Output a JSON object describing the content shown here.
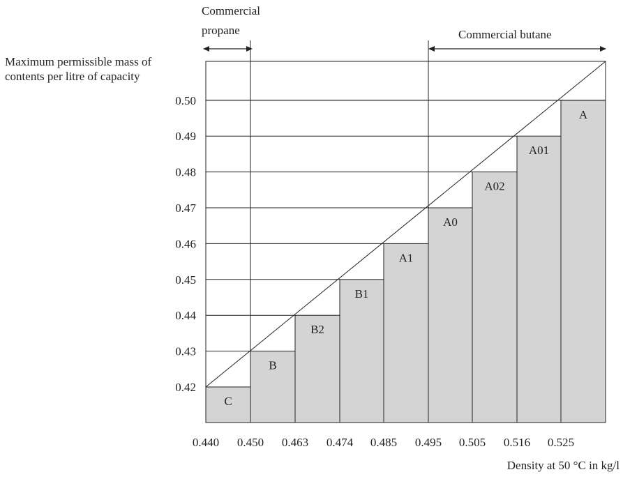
{
  "chart_data": {
    "type": "bar",
    "ylabel_line1": "Maximum permissible mass of",
    "ylabel_line2": "contents per litre of capacity",
    "xlabel": "Density at 50 °C in kg/l",
    "propane_line1": "Commercial",
    "propane_line2": "propane",
    "butane_label": "Commercial butane",
    "y_ticks": [
      "0.50",
      "0.49",
      "0.48",
      "0.47",
      "0.46",
      "0.45",
      "0.44",
      "0.43",
      "0.42"
    ],
    "x_ticks": [
      "0.440",
      "0.450",
      "0.463",
      "0.474",
      "0.485",
      "0.495",
      "0.505",
      "0.516",
      "0.525"
    ],
    "categories": [
      "C",
      "B",
      "B2",
      "B1",
      "A1",
      "A0",
      "A02",
      "A01",
      "A"
    ],
    "values": [
      0.42,
      0.43,
      0.44,
      0.45,
      0.46,
      0.47,
      0.48,
      0.49,
      0.5
    ],
    "bar_color": "#d4d4d4"
  }
}
